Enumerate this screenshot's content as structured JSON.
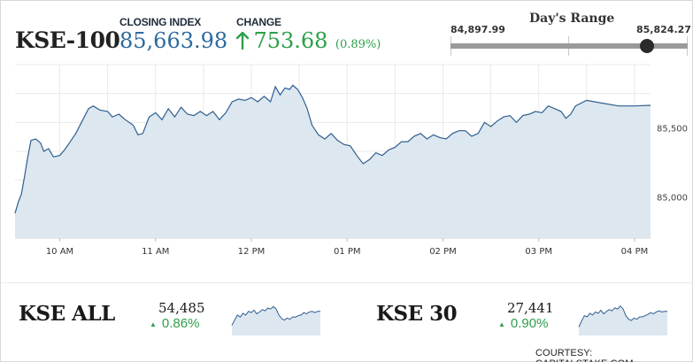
{
  "header": {
    "index_name": "KSE-100",
    "closing_label": "CLOSING INDEX",
    "closing_value": "85,663.98",
    "change_label": "CHANGE",
    "change_value": "753.68",
    "change_pct": "(0.89%)",
    "change_direction_icon": "up-arrow-icon"
  },
  "days_range": {
    "title": "Day's Range",
    "low": "84,897.99",
    "high": "85,824.27",
    "current_fraction": 0.83
  },
  "colors": {
    "brand_blue": "#2c6aa0",
    "positive_green": "#2da04a",
    "line_color": "#2f5f8f",
    "fill_color": "#dde7f0"
  },
  "chart_data": {
    "type": "area",
    "title": "",
    "xlabel": "",
    "ylabel": "",
    "x_ticks": [
      "10 AM",
      "11 AM",
      "12 PM",
      "01 PM",
      "02 PM",
      "03 PM",
      "04 PM"
    ],
    "y_ticks": [
      85000,
      85500
    ],
    "y_tick_labels": [
      "85,000",
      "85,500"
    ],
    "ylim": [
      84700,
      85960
    ],
    "grid": true,
    "series": [
      {
        "x": [
          "09:32",
          "09:34",
          "09:36",
          "09:38",
          "09:40",
          "09:42",
          "09:45",
          "09:48",
          "09:50",
          "09:53",
          "09:56",
          "10:00",
          "10:03",
          "10:06",
          "10:10",
          "10:14",
          "10:18",
          "10:21",
          "10:25",
          "10:30",
          "10:33",
          "10:37",
          "10:41",
          "10:46",
          "10:49",
          "10:52",
          "10:56",
          "11:00",
          "11:04",
          "11:08",
          "11:12",
          "11:16",
          "11:20",
          "11:24",
          "11:28",
          "11:32",
          "11:36",
          "11:40",
          "11:44",
          "11:48",
          "11:52",
          "11:56",
          "12:00",
          "12:04",
          "12:08",
          "12:12",
          "12:15",
          "12:18",
          "12:21",
          "12:24",
          "12:26",
          "12:29",
          "12:32",
          "12:35",
          "12:38",
          "12:42",
          "12:46",
          "12:50",
          "12:54",
          "12:58",
          "13:02",
          "13:06",
          "13:10",
          "13:14",
          "13:18",
          "13:22",
          "13:26",
          "13:30",
          "13:34",
          "13:38",
          "13:42",
          "13:46",
          "13:50",
          "13:54",
          "13:58",
          "14:02",
          "14:06",
          "14:10",
          "14:14",
          "14:18",
          "14:22",
          "14:26",
          "14:30",
          "14:34",
          "14:38",
          "14:42",
          "14:46",
          "14:50",
          "14:54",
          "14:58",
          "15:02",
          "15:06",
          "15:10",
          "15:14",
          "15:17",
          "15:20",
          "15:23",
          "15:30",
          "15:40",
          "15:50",
          "16:00",
          "16:10"
        ],
        "y": [
          84880,
          84960,
          85020,
          85150,
          85290,
          85410,
          85420,
          85390,
          85330,
          85350,
          85290,
          85300,
          85340,
          85390,
          85460,
          85550,
          85640,
          85660,
          85630,
          85620,
          85580,
          85600,
          85560,
          85520,
          85450,
          85460,
          85580,
          85610,
          85560,
          85640,
          85580,
          85650,
          85600,
          85590,
          85620,
          85590,
          85620,
          85560,
          85610,
          85690,
          85710,
          85700,
          85720,
          85690,
          85730,
          85690,
          85800,
          85740,
          85790,
          85780,
          85810,
          85780,
          85720,
          85640,
          85520,
          85450,
          85420,
          85460,
          85410,
          85380,
          85370,
          85300,
          85240,
          85270,
          85320,
          85300,
          85340,
          85360,
          85400,
          85400,
          85440,
          85460,
          85420,
          85450,
          85430,
          85420,
          85460,
          85480,
          85480,
          85440,
          85460,
          85540,
          85510,
          85550,
          85580,
          85590,
          85540,
          85590,
          85600,
          85620,
          85610,
          85660,
          85640,
          85620,
          85570,
          85600,
          85660,
          85700,
          85680,
          85660,
          85660,
          85664
        ]
      }
    ]
  },
  "mini_indices": [
    {
      "name": "KSE ALL",
      "value": "54,485",
      "change": "0.86%",
      "spark": [
        0.28,
        0.45,
        0.62,
        0.55,
        0.68,
        0.62,
        0.74,
        0.7,
        0.78,
        0.66,
        0.72,
        0.8,
        0.76,
        0.85,
        0.82,
        0.9,
        0.82,
        0.62,
        0.5,
        0.45,
        0.52,
        0.48,
        0.56,
        0.55,
        0.6,
        0.62,
        0.7,
        0.66,
        0.72,
        0.74,
        0.7,
        0.74,
        0.74
      ]
    },
    {
      "name": "KSE 30",
      "value": "27,441",
      "change": "0.90%",
      "spark": [
        0.22,
        0.42,
        0.6,
        0.56,
        0.68,
        0.62,
        0.72,
        0.68,
        0.78,
        0.66,
        0.74,
        0.8,
        0.76,
        0.86,
        0.82,
        0.92,
        0.82,
        0.6,
        0.48,
        0.44,
        0.52,
        0.48,
        0.56,
        0.56,
        0.6,
        0.64,
        0.7,
        0.66,
        0.72,
        0.76,
        0.72,
        0.74,
        0.74
      ]
    }
  ],
  "footer": {
    "courtesy": "COURTESY: CAPITALSTAKE.COM"
  }
}
